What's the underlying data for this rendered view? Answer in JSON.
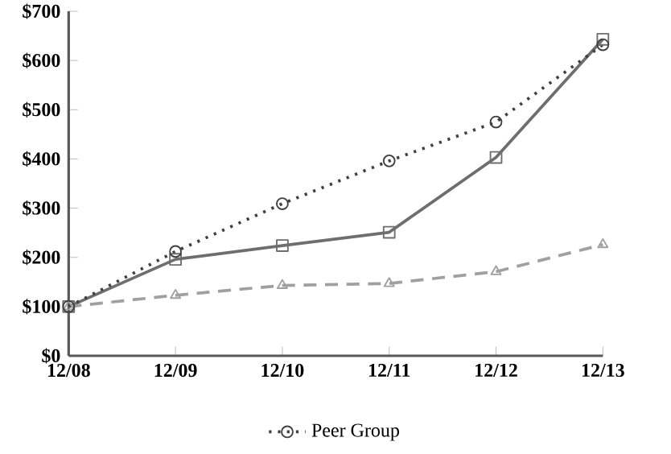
{
  "chart_data": {
    "type": "line",
    "categories": [
      "12/08",
      "12/09",
      "12/10",
      "12/11",
      "12/12",
      "12/13"
    ],
    "series": [
      {
        "color": "#6e6e6e",
        "marker": "square",
        "line_style": "solid",
        "values": [
          100,
          196,
          224,
          251,
          403,
          643
        ]
      },
      {
        "color": "#a0a0a0",
        "marker": "triangle",
        "line_style": "dashed",
        "values": [
          100,
          123,
          143,
          147,
          171,
          226
        ]
      },
      {
        "name": "Peer Group",
        "color": "#404040",
        "marker": "circle",
        "line_style": "dotted",
        "values": [
          100,
          212,
          309,
          396,
          475,
          632
        ]
      }
    ],
    "ylim": [
      0,
      700
    ],
    "yticks": [
      {
        "value": 0,
        "label": "$0"
      },
      {
        "value": 100,
        "label": "$100"
      },
      {
        "value": 200,
        "label": "$200"
      },
      {
        "value": 300,
        "label": "$300"
      },
      {
        "value": 400,
        "label": "$400"
      },
      {
        "value": 500,
        "label": "$500"
      },
      {
        "value": 600,
        "label": "$600"
      },
      {
        "value": 700,
        "label": "$700"
      }
    ],
    "grid": false,
    "legend": "bottom"
  }
}
